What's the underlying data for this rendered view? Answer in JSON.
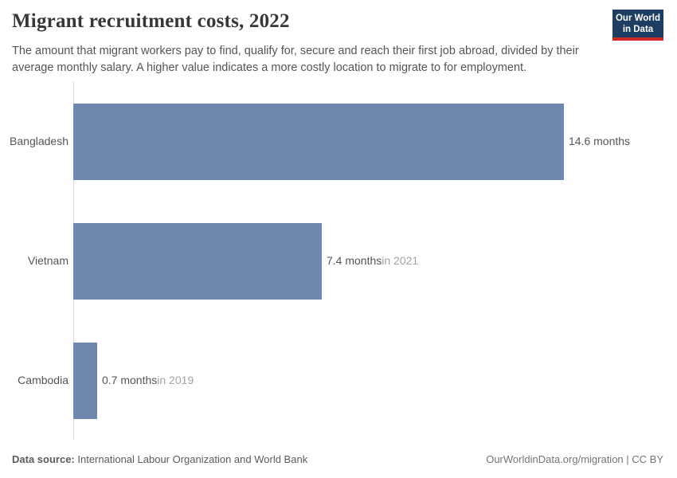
{
  "header": {
    "title": "Migrant recruitment costs, 2022",
    "subtitle": "The amount that migrant workers pay to find, qualify for, secure and reach their first job abroad, divided by their average monthly salary. A higher value indicates a more costly location to migrate to for employment."
  },
  "logo": {
    "line1": "Our World",
    "line2": "in Data"
  },
  "chart_data": {
    "type": "bar",
    "orientation": "horizontal",
    "title": "Migrant recruitment costs, 2022",
    "unit": "months",
    "categories": [
      "Bangladesh",
      "Vietnam",
      "Cambodia"
    ],
    "values": [
      14.6,
      7.4,
      0.7
    ],
    "value_labels": [
      "14.6 months",
      "7.4 months",
      "0.7 months"
    ],
    "year_notes": [
      "",
      "in 2021",
      "in 2019"
    ],
    "xlim": [
      0,
      14.6
    ],
    "grid": false,
    "legend": false,
    "bar_color": "#6e87ad"
  },
  "footer": {
    "source_label": "Data source:",
    "source_text": " International Labour Organization and World Bank",
    "link_text": "OurWorldinData.org/migration | CC BY"
  },
  "colors": {
    "bar": "#6e87ad",
    "axis": "#dadada",
    "logo_navy": "#1d3d63",
    "logo_red": "#cf2721"
  }
}
